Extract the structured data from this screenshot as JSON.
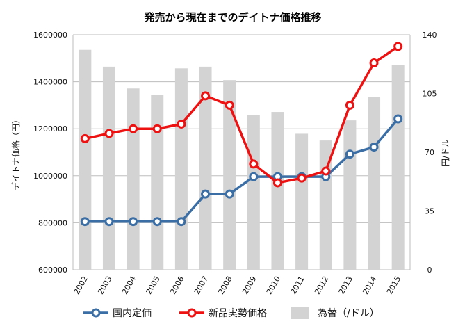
{
  "chart_data": {
    "type": "bar+line",
    "title": "発売から現在までのデイトナ価格推移",
    "categories": [
      "2002",
      "2003",
      "2004",
      "2005",
      "2006",
      "2007",
      "2008",
      "2009",
      "2010",
      "2011",
      "2012",
      "2013",
      "2014",
      "2015"
    ],
    "ylabel_left": "デイトナ価格（円）",
    "ylabel_right": "円/ドル",
    "yticks_left": [
      "600000",
      "800000",
      "1000000",
      "1200000",
      "1400000",
      "1600000"
    ],
    "yticks_right": [
      "0",
      "35",
      "70",
      "105",
      "140"
    ],
    "ylim_left": [
      600000,
      1600000
    ],
    "ylim_right": [
      0,
      140
    ],
    "grid": true,
    "legend_position": "bottom",
    "series": [
      {
        "name": "国内定価",
        "type": "line",
        "axis": "left",
        "color": "#3a6ea5",
        "values": [
          805000,
          805000,
          805000,
          805000,
          805000,
          922000,
          922000,
          996000,
          996000,
          996000,
          996000,
          1092000,
          1122000,
          1242000
        ]
      },
      {
        "name": "新品実勢価格",
        "type": "line",
        "axis": "left",
        "color": "#ee1111",
        "values": [
          1158000,
          1180000,
          1200000,
          1200000,
          1220000,
          1340000,
          1300000,
          1050000,
          970000,
          990000,
          1020000,
          1300000,
          1480000,
          1550000
        ]
      },
      {
        "name": "為替（/ドル）",
        "type": "bar",
        "axis": "right",
        "color": "#d3d3d3",
        "values": [
          131,
          121,
          108,
          104,
          120,
          121,
          113,
          92,
          94,
          81,
          77,
          89,
          103,
          122
        ]
      }
    ]
  }
}
